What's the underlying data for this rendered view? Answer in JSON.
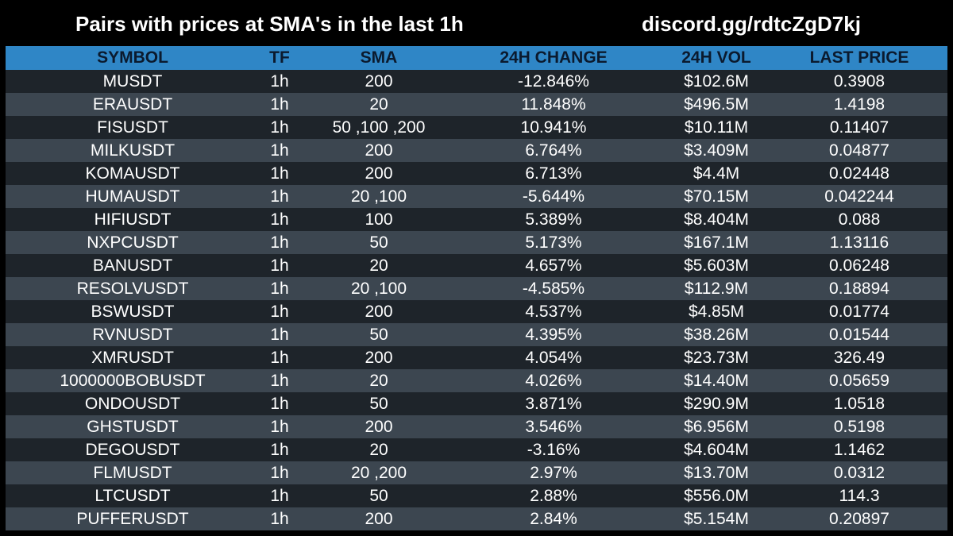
{
  "header": {
    "title": "Pairs with prices at SMA's in the last 1h",
    "discord": "discord.gg/rdtcZgD7kj"
  },
  "table": {
    "columns": [
      "SYMBOL",
      "TF",
      "SMA",
      "24H CHANGE",
      "24H VOL",
      "LAST PRICE"
    ],
    "rows": [
      [
        "MUSDT",
        "1h",
        "200",
        "-12.846%",
        "$102.6M",
        "0.3908"
      ],
      [
        "ERAUSDT",
        "1h",
        "20",
        "11.848%",
        "$496.5M",
        "1.4198"
      ],
      [
        "FISUSDT",
        "1h",
        "50 ,100 ,200",
        "10.941%",
        "$10.11M",
        "0.11407"
      ],
      [
        "MILKUSDT",
        "1h",
        "200",
        "6.764%",
        "$3.409M",
        "0.04877"
      ],
      [
        "KOMAUSDT",
        "1h",
        "200",
        "6.713%",
        "$4.4M",
        "0.02448"
      ],
      [
        "HUMAUSDT",
        "1h",
        "20 ,100",
        "-5.644%",
        "$70.15M",
        "0.042244"
      ],
      [
        "HIFIUSDT",
        "1h",
        "100",
        "5.389%",
        "$8.404M",
        "0.088"
      ],
      [
        "NXPCUSDT",
        "1h",
        "50",
        "5.173%",
        "$167.1M",
        "1.13116"
      ],
      [
        "BANUSDT",
        "1h",
        "20",
        "4.657%",
        "$5.603M",
        "0.06248"
      ],
      [
        "RESOLVUSDT",
        "1h",
        "20 ,100",
        "-4.585%",
        "$112.9M",
        "0.18894"
      ],
      [
        "BSWUSDT",
        "1h",
        "200",
        "4.537%",
        "$4.85M",
        "0.01774"
      ],
      [
        "RVNUSDT",
        "1h",
        "50",
        "4.395%",
        "$38.26M",
        "0.01544"
      ],
      [
        "XMRUSDT",
        "1h",
        "200",
        "4.054%",
        "$23.73M",
        "326.49"
      ],
      [
        "1000000BOBUSDT",
        "1h",
        "20",
        "4.026%",
        "$14.40M",
        "0.05659"
      ],
      [
        "ONDOUSDT",
        "1h",
        "50",
        "3.871%",
        "$290.9M",
        "1.0518"
      ],
      [
        "GHSTUSDT",
        "1h",
        "200",
        "3.546%",
        "$6.956M",
        "0.5198"
      ],
      [
        "DEGOUSDT",
        "1h",
        "20",
        "-3.16%",
        "$4.604M",
        "1.1462"
      ],
      [
        "FLMUSDT",
        "1h",
        "20 ,200",
        "2.97%",
        "$13.70M",
        "0.0312"
      ],
      [
        "LTCUSDT",
        "1h",
        "50",
        "2.88%",
        "$556.0M",
        "114.3"
      ],
      [
        "PUFFERUSDT",
        "1h",
        "200",
        "2.84%",
        "$5.154M",
        "0.20897"
      ]
    ]
  },
  "colors": {
    "background": "#000000",
    "header_bar": "#2f86c6",
    "row_dark": "#1e242a",
    "row_light": "#3c4650",
    "text": "#ffffff"
  }
}
